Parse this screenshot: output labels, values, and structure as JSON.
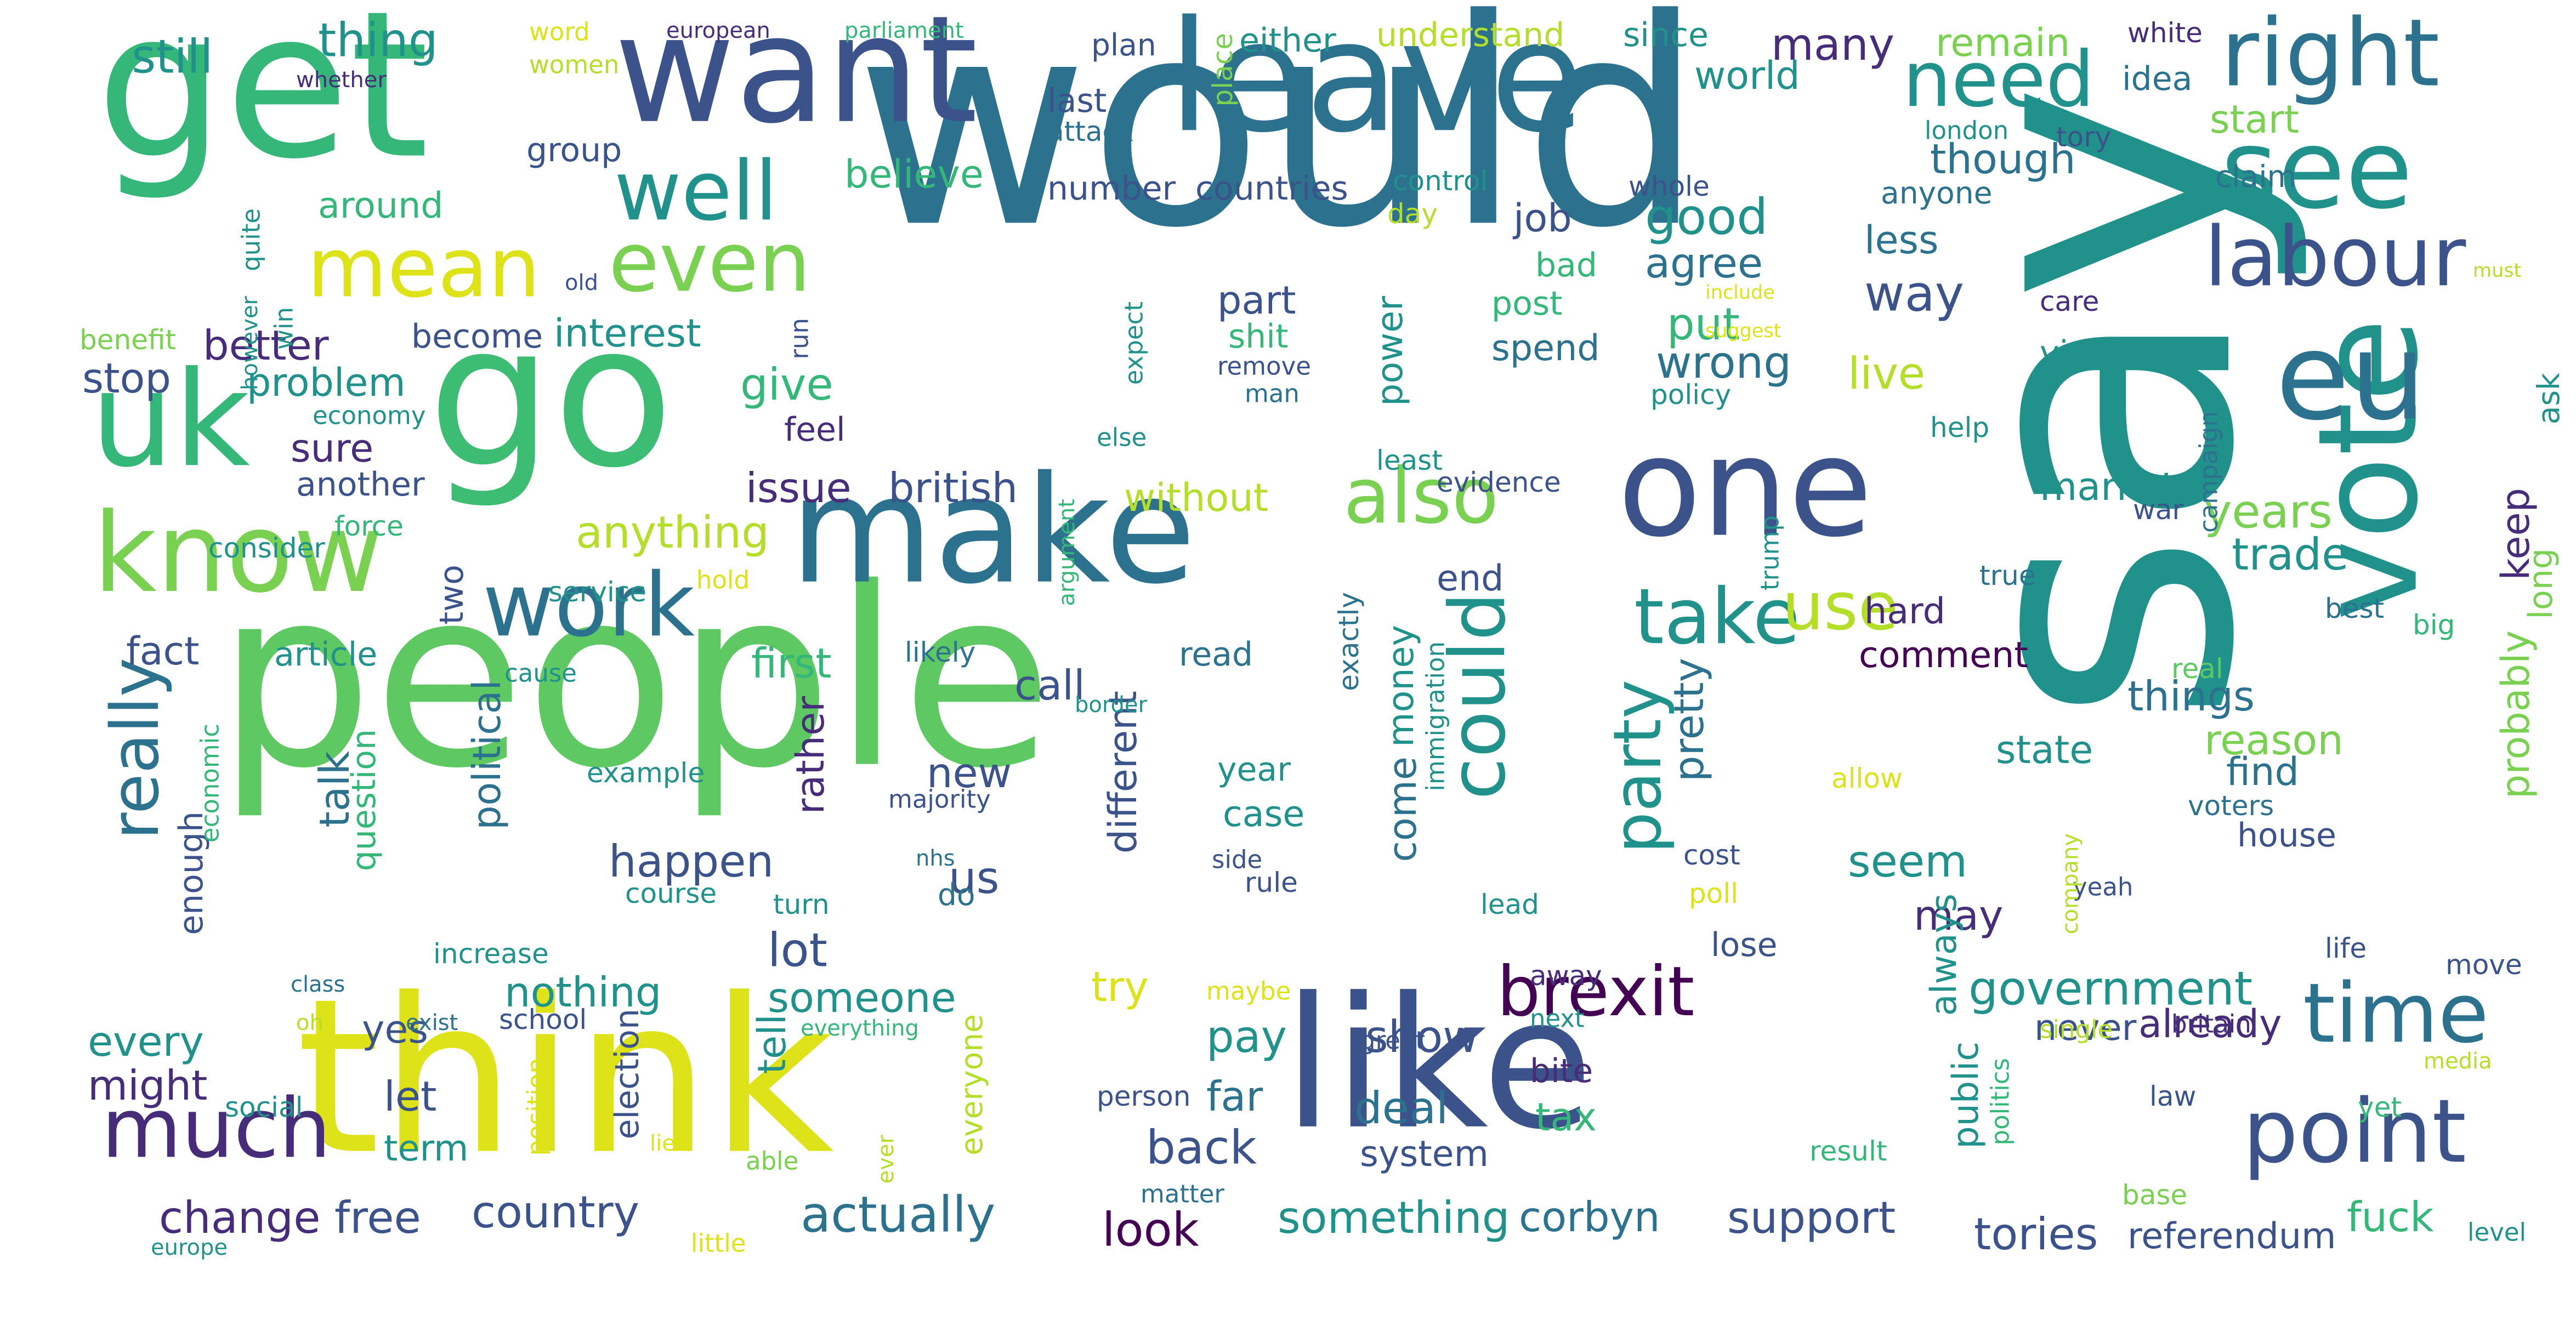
{
  "colors": {
    "background": "#ffffff",
    "palette": [
      "#440154",
      "#472c7a",
      "#3b528b",
      "#2c728e",
      "#21918c",
      "#28ae80",
      "#5ec962",
      "#addc30",
      "#fde725"
    ]
  },
  "words": [
    {
      "text": "would",
      "color": "#2c728e"
    },
    {
      "text": "people",
      "color": "#5ec962"
    },
    {
      "text": "say",
      "color": "#21918c"
    },
    {
      "text": "like",
      "color": "#3b528b"
    },
    {
      "text": "think",
      "color": "#dde318"
    },
    {
      "text": "get",
      "color": "#35b779"
    },
    {
      "text": "go",
      "color": "#3dbc74"
    },
    {
      "text": "want",
      "color": "#3b528b"
    },
    {
      "text": "leave",
      "color": "#2c728e"
    },
    {
      "text": "make",
      "color": "#2c728e"
    },
    {
      "text": "one",
      "color": "#3b528b"
    },
    {
      "text": "vote",
      "color": "#21918c"
    },
    {
      "text": "uk",
      "color": "#35b779"
    },
    {
      "text": "know",
      "color": "#7ad151"
    },
    {
      "text": "see",
      "color": "#21918c"
    },
    {
      "text": "eu",
      "color": "#2c728e"
    },
    {
      "text": "right",
      "color": "#2c728e"
    },
    {
      "text": "need",
      "color": "#21918c"
    },
    {
      "text": "labour",
      "color": "#3b528b"
    },
    {
      "text": "time",
      "color": "#2c728e"
    },
    {
      "text": "point",
      "color": "#3b528b"
    },
    {
      "text": "much",
      "color": "#472c7a"
    },
    {
      "text": "work",
      "color": "#2c728e"
    },
    {
      "text": "mean",
      "color": "#dde318"
    },
    {
      "text": "even",
      "color": "#7ad151"
    },
    {
      "text": "well",
      "color": "#21918c"
    },
    {
      "text": "also",
      "color": "#7ad151"
    },
    {
      "text": "take",
      "color": "#21918c"
    },
    {
      "text": "could",
      "color": "#21918c"
    },
    {
      "text": "brexit",
      "color": "#440154"
    },
    {
      "text": "party",
      "color": "#21918c"
    },
    {
      "text": "really",
      "color": "#2c728e"
    },
    {
      "text": "use",
      "color": "#b5de2b"
    },
    {
      "text": "government",
      "color": "#21918c"
    },
    {
      "text": "actually",
      "color": "#2c728e"
    },
    {
      "text": "country",
      "color": "#3b528b"
    },
    {
      "text": "change",
      "color": "#472c7a"
    },
    {
      "text": "free",
      "color": "#3b528b"
    },
    {
      "text": "look",
      "color": "#440154"
    },
    {
      "text": "something",
      "color": "#21918c"
    },
    {
      "text": "corbyn",
      "color": "#2c728e"
    },
    {
      "text": "support",
      "color": "#3b528b"
    },
    {
      "text": "tories",
      "color": "#3b528b"
    },
    {
      "text": "referendum",
      "color": "#3b528b"
    },
    {
      "text": "fuck",
      "color": "#35b779"
    },
    {
      "text": "back",
      "color": "#3b528b"
    },
    {
      "text": "deal",
      "color": "#2c728e"
    },
    {
      "text": "tax",
      "color": "#35b779"
    },
    {
      "text": "system",
      "color": "#3b528b"
    },
    {
      "text": "show",
      "color": "#3b528b"
    },
    {
      "text": "pay",
      "color": "#21918c"
    },
    {
      "text": "far",
      "color": "#2c728e"
    },
    {
      "text": "let",
      "color": "#3b528b"
    },
    {
      "text": "term",
      "color": "#21918c"
    },
    {
      "text": "might",
      "color": "#472c7a"
    },
    {
      "text": "every",
      "color": "#21918c"
    },
    {
      "text": "nothing",
      "color": "#21918c"
    },
    {
      "text": "someone",
      "color": "#21918c"
    },
    {
      "text": "lot",
      "color": "#3b528b"
    },
    {
      "text": "try",
      "color": "#dde318"
    },
    {
      "text": "yes",
      "color": "#3b528b"
    },
    {
      "text": "happen",
      "color": "#3b528b"
    },
    {
      "text": "us",
      "color": "#3b528b"
    },
    {
      "text": "new",
      "color": "#3b528b"
    },
    {
      "text": "seem",
      "color": "#21918c"
    },
    {
      "text": "may",
      "color": "#472c7a"
    },
    {
      "text": "always",
      "color": "#21918c"
    },
    {
      "text": "never",
      "color": "#3b528b"
    },
    {
      "text": "already",
      "color": "#472c7a"
    },
    {
      "text": "good",
      "color": "#21918c"
    },
    {
      "text": "agree",
      "color": "#2c728e"
    },
    {
      "text": "job",
      "color": "#3b528b"
    },
    {
      "text": "put",
      "color": "#35b779"
    },
    {
      "text": "wrong",
      "color": "#2c728e"
    },
    {
      "text": "way",
      "color": "#3b528b"
    },
    {
      "text": "many",
      "color": "#472c7a"
    },
    {
      "text": "world",
      "color": "#21918c"
    },
    {
      "text": "though",
      "color": "#2c728e"
    },
    {
      "text": "remain",
      "color": "#7ad151"
    },
    {
      "text": "since",
      "color": "#21918c"
    },
    {
      "text": "start",
      "color": "#7ad151"
    },
    {
      "text": "years",
      "color": "#7ad151"
    },
    {
      "text": "trade",
      "color": "#21918c"
    },
    {
      "text": "market",
      "color": "#21918c"
    },
    {
      "text": "keep",
      "color": "#472c7a"
    },
    {
      "text": "things",
      "color": "#2c728e"
    },
    {
      "text": "state",
      "color": "#21918c"
    },
    {
      "text": "reason",
      "color": "#7ad151"
    },
    {
      "text": "find",
      "color": "#2c728e"
    },
    {
      "text": "house",
      "color": "#3b528b"
    },
    {
      "text": "probably",
      "color": "#7ad151"
    },
    {
      "text": "long",
      "color": "#7ad151"
    },
    {
      "text": "less",
      "color": "#2c728e"
    },
    {
      "text": "live",
      "color": "#b5de2b"
    },
    {
      "text": "view",
      "color": "#21918c"
    },
    {
      "text": "spend",
      "color": "#2c728e"
    },
    {
      "text": "post",
      "color": "#35b779"
    },
    {
      "text": "bad",
      "color": "#35b779"
    },
    {
      "text": "still",
      "color": "#21918c"
    },
    {
      "text": "thing",
      "color": "#21918c"
    },
    {
      "text": "better",
      "color": "#472c7a"
    },
    {
      "text": "stop",
      "color": "#3b528b"
    },
    {
      "text": "problem",
      "color": "#21918c"
    },
    {
      "text": "sure",
      "color": "#472c7a"
    },
    {
      "text": "another",
      "color": "#3b528b"
    },
    {
      "text": "interest",
      "color": "#21918c"
    },
    {
      "text": "become",
      "color": "#3b528b"
    },
    {
      "text": "give",
      "color": "#35b779"
    },
    {
      "text": "believe",
      "color": "#35b779"
    },
    {
      "text": "anything",
      "color": "#b5de2b"
    },
    {
      "text": "issue",
      "color": "#472c7a"
    },
    {
      "text": "british",
      "color": "#3b528b"
    },
    {
      "text": "without",
      "color": "#b5de2b"
    },
    {
      "text": "first",
      "color": "#35b779"
    },
    {
      "text": "call",
      "color": "#3b528b"
    },
    {
      "text": "fact",
      "color": "#3b528b"
    },
    {
      "text": "article",
      "color": "#21918c"
    },
    {
      "text": "end",
      "color": "#3b528b"
    },
    {
      "text": "part",
      "color": "#3b528b"
    },
    {
      "text": "feel",
      "color": "#472c7a"
    },
    {
      "text": "around",
      "color": "#35b779"
    },
    {
      "text": "group",
      "color": "#3b528b"
    },
    {
      "text": "last",
      "color": "#3b528b"
    },
    {
      "text": "attack",
      "color": "#2c728e"
    },
    {
      "text": "plan",
      "color": "#3b528b"
    },
    {
      "text": "number",
      "color": "#3b528b"
    },
    {
      "text": "countries",
      "color": "#3b528b"
    },
    {
      "text": "either",
      "color": "#21918c"
    },
    {
      "text": "understand",
      "color": "#b5de2b"
    },
    {
      "text": "idea",
      "color": "#2c728e"
    },
    {
      "text": "white",
      "color": "#472c7a"
    },
    {
      "text": "claim",
      "color": "#2c728e"
    },
    {
      "text": "tory",
      "color": "#3b528b"
    },
    {
      "text": "anyone",
      "color": "#2c728e"
    },
    {
      "text": "london",
      "color": "#21918c"
    },
    {
      "text": "whole",
      "color": "#3b528b"
    },
    {
      "text": "control",
      "color": "#21918c"
    },
    {
      "text": "day",
      "color": "#b5de2b"
    },
    {
      "text": "shit",
      "color": "#35b779"
    },
    {
      "text": "remove",
      "color": "#3b528b"
    },
    {
      "text": "man",
      "color": "#2c728e"
    },
    {
      "text": "policy",
      "color": "#21918c"
    },
    {
      "text": "care",
      "color": "#472c7a"
    },
    {
      "text": "include",
      "color": "#dde318"
    },
    {
      "text": "suggest",
      "color": "#dde318"
    },
    {
      "text": "must",
      "color": "#b5de2b"
    },
    {
      "text": "ask",
      "color": "#21918c"
    },
    {
      "text": "help",
      "color": "#21918c"
    },
    {
      "text": "campaign",
      "color": "#2c728e"
    },
    {
      "text": "war",
      "color": "#3b528b"
    },
    {
      "text": "else",
      "color": "#21918c"
    },
    {
      "text": "least",
      "color": "#21918c"
    },
    {
      "text": "evidence",
      "color": "#3b528b"
    },
    {
      "text": "true",
      "color": "#2c728e"
    },
    {
      "text": "hard",
      "color": "#472c7a"
    },
    {
      "text": "comment",
      "color": "#440154"
    },
    {
      "text": "best",
      "color": "#2c728e"
    },
    {
      "text": "big",
      "color": "#35b779"
    },
    {
      "text": "real",
      "color": "#5ec962"
    },
    {
      "text": "voters",
      "color": "#2c728e"
    },
    {
      "text": "yeah",
      "color": "#3b528b"
    },
    {
      "text": "cost",
      "color": "#3b528b"
    },
    {
      "text": "poll",
      "color": "#dde318"
    },
    {
      "text": "lead",
      "color": "#21918c"
    },
    {
      "text": "lose",
      "color": "#3b528b"
    },
    {
      "text": "away",
      "color": "#472c7a"
    },
    {
      "text": "next",
      "color": "#21918c"
    },
    {
      "text": "great",
      "color": "#3b528b"
    },
    {
      "text": "bite",
      "color": "#472c7a"
    },
    {
      "text": "public",
      "color": "#21918c"
    },
    {
      "text": "politics",
      "color": "#35b779"
    },
    {
      "text": "britain",
      "color": "#472c7a"
    },
    {
      "text": "single",
      "color": "#b5de2b"
    },
    {
      "text": "media",
      "color": "#b5de2b"
    },
    {
      "text": "yet",
      "color": "#35b779"
    },
    {
      "text": "law",
      "color": "#3b528b"
    },
    {
      "text": "result",
      "color": "#35b779"
    },
    {
      "text": "base",
      "color": "#7ad151"
    },
    {
      "text": "level",
      "color": "#21918c"
    },
    {
      "text": "move",
      "color": "#3b528b"
    },
    {
      "text": "life",
      "color": "#3b528b"
    },
    {
      "text": "company",
      "color": "#b5de2b"
    },
    {
      "text": "allow",
      "color": "#dde318"
    },
    {
      "text": "pretty",
      "color": "#2c728e"
    },
    {
      "text": "money",
      "color": "#21918c"
    },
    {
      "text": "immigration",
      "color": "#21918c"
    },
    {
      "text": "exactly",
      "color": "#2c728e"
    },
    {
      "text": "trump",
      "color": "#21918c"
    },
    {
      "text": "power",
      "color": "#21918c"
    },
    {
      "text": "come",
      "color": "#2c728e"
    },
    {
      "text": "different",
      "color": "#3b528b"
    },
    {
      "text": "rather",
      "color": "#472c7a"
    },
    {
      "text": "political",
      "color": "#2c728e"
    },
    {
      "text": "talk",
      "color": "#2c728e"
    },
    {
      "text": "enough",
      "color": "#3b528b"
    },
    {
      "text": "question",
      "color": "#35b779"
    },
    {
      "text": "economic",
      "color": "#35b779"
    },
    {
      "text": "two",
      "color": "#3b528b"
    },
    {
      "text": "tell",
      "color": "#21918c"
    },
    {
      "text": "election",
      "color": "#3b528b"
    },
    {
      "text": "everyone",
      "color": "#b5de2b"
    },
    {
      "text": "position",
      "color": "#dde318"
    },
    {
      "text": "argument",
      "color": "#35b779"
    },
    {
      "text": "place",
      "color": "#7ad151"
    },
    {
      "text": "expect",
      "color": "#21918c"
    },
    {
      "text": "run",
      "color": "#3b528b"
    },
    {
      "text": "year",
      "color": "#21918c"
    },
    {
      "text": "case",
      "color": "#21918c"
    },
    {
      "text": "read",
      "color": "#2c728e"
    },
    {
      "text": "likely",
      "color": "#2c728e"
    },
    {
      "text": "border",
      "color": "#21918c"
    },
    {
      "text": "example",
      "color": "#21918c"
    },
    {
      "text": "majority",
      "color": "#3b528b"
    },
    {
      "text": "nhs",
      "color": "#2c728e"
    },
    {
      "text": "side",
      "color": "#3b528b"
    },
    {
      "text": "rule",
      "color": "#3b528b"
    },
    {
      "text": "course",
      "color": "#21918c"
    },
    {
      "text": "turn",
      "color": "#21918c"
    },
    {
      "text": "do",
      "color": "#2c728e"
    },
    {
      "text": "increase",
      "color": "#21918c"
    },
    {
      "text": "class",
      "color": "#2c728e"
    },
    {
      "text": "oh",
      "color": "#b5de2b"
    },
    {
      "text": "exist",
      "color": "#2c728e"
    },
    {
      "text": "school",
      "color": "#3b528b"
    },
    {
      "text": "everything",
      "color": "#35b779"
    },
    {
      "text": "maybe",
      "color": "#dde318"
    },
    {
      "text": "social",
      "color": "#21918c"
    },
    {
      "text": "person",
      "color": "#3b528b"
    },
    {
      "text": "matter",
      "color": "#2c728e"
    },
    {
      "text": "able",
      "color": "#7ad151"
    },
    {
      "text": "ever",
      "color": "#b5de2b"
    },
    {
      "text": "lie",
      "color": "#dde318"
    },
    {
      "text": "little",
      "color": "#dde318"
    },
    {
      "text": "europe",
      "color": "#21918c"
    },
    {
      "text": "service",
      "color": "#21918c"
    },
    {
      "text": "hold",
      "color": "#dde318"
    },
    {
      "text": "cause",
      "color": "#21918c"
    },
    {
      "text": "consider",
      "color": "#21918c"
    },
    {
      "text": "force",
      "color": "#35b779"
    },
    {
      "text": "benefit",
      "color": "#7ad151"
    },
    {
      "text": "economy",
      "color": "#21918c"
    },
    {
      "text": "win",
      "color": "#21918c"
    },
    {
      "text": "however",
      "color": "#21918c"
    },
    {
      "text": "quite",
      "color": "#21918c"
    },
    {
      "text": "old",
      "color": "#3b528b"
    },
    {
      "text": "whether",
      "color": "#472c7a"
    },
    {
      "text": "word",
      "color": "#dde318"
    },
    {
      "text": "women",
      "color": "#b5de2b"
    },
    {
      "text": "european",
      "color": "#472c7a"
    },
    {
      "text": "parliament",
      "color": "#35b779"
    }
  ]
}
